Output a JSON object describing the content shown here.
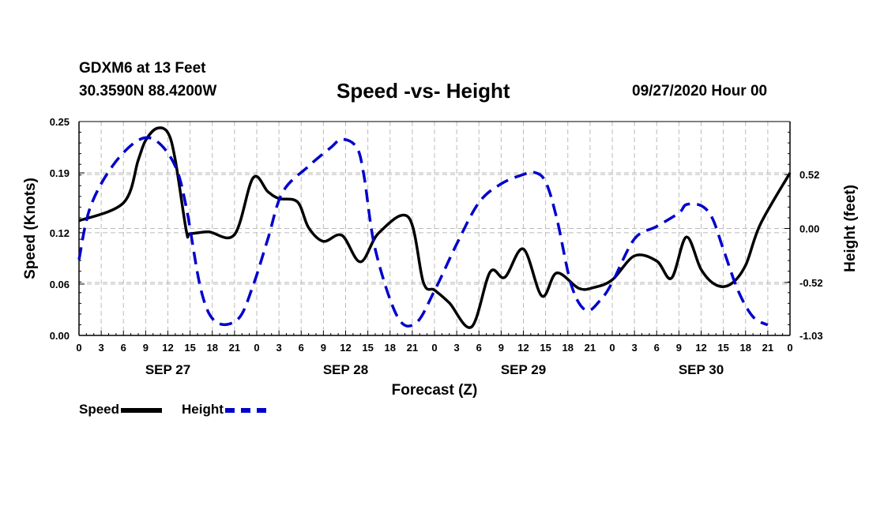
{
  "header": {
    "station": "GDXM6 at 13 Feet",
    "coords": "30.3590N 88.4200W",
    "title": "Speed -vs- Height",
    "datestamp": "09/27/2020 Hour 00"
  },
  "legend": {
    "speed": "Speed",
    "height": "Height"
  },
  "colors": {
    "speed": "#000000",
    "height": "#0000cc",
    "grid": "#bbbbbb"
  },
  "chart_data": {
    "type": "line",
    "title": "Speed -vs- Height",
    "xlabel": "Forecast (Z)",
    "ylabel": "Speed (Knots)",
    "y2label": "Height (feet)",
    "xlim": [
      0,
      96
    ],
    "ylim": [
      0,
      0.25
    ],
    "y2lim": [
      -1.03,
      1.03
    ],
    "grid": true,
    "x_ticks": [
      0,
      3,
      6,
      9,
      12,
      15,
      18,
      21,
      24,
      27,
      30,
      33,
      36,
      39,
      42,
      45,
      48,
      51,
      54,
      57,
      60,
      63,
      66,
      69,
      72,
      75,
      78,
      81,
      84,
      87,
      90,
      93,
      96
    ],
    "x_tick_labels": [
      "0",
      "3",
      "6",
      "9",
      "12",
      "15",
      "18",
      "21",
      "0",
      "3",
      "6",
      "9",
      "12",
      "15",
      "18",
      "21",
      "0",
      "3",
      "6",
      "9",
      "12",
      "15",
      "18",
      "21",
      "0",
      "3",
      "6",
      "9",
      "12",
      "15",
      "18",
      "21",
      "0"
    ],
    "day_labels": [
      {
        "label": "SEP 27",
        "x": 12
      },
      {
        "label": "SEP 28",
        "x": 36
      },
      {
        "label": "SEP 29",
        "x": 60
      },
      {
        "label": "SEP 30",
        "x": 84
      }
    ],
    "y_ticks": [
      0.0,
      0.06,
      0.12,
      0.19,
      0.25
    ],
    "y_tick_labels": [
      "0.00",
      "0.06",
      "0.12",
      "0.19",
      "0.25"
    ],
    "y2_ticks": [
      -1.03,
      -0.52,
      0.0,
      0.52
    ],
    "y2_tick_labels": [
      "-1.03",
      "-0.52",
      "0.00",
      "0.52"
    ],
    "series": [
      {
        "name": "Speed",
        "axis": "left",
        "style": "solid",
        "points": [
          [
            0,
            0.134
          ],
          [
            6,
            0.155
          ],
          [
            8,
            0.205
          ],
          [
            9,
            0.228
          ],
          [
            10.5,
            0.242
          ],
          [
            12,
            0.237
          ],
          [
            13,
            0.205
          ],
          [
            14.5,
            0.122
          ],
          [
            15,
            0.119
          ],
          [
            17.5,
            0.121
          ],
          [
            21,
            0.118
          ],
          [
            23.5,
            0.184
          ],
          [
            25.5,
            0.168
          ],
          [
            27,
            0.16
          ],
          [
            29.5,
            0.156
          ],
          [
            31,
            0.126
          ],
          [
            33,
            0.11
          ],
          [
            35.5,
            0.117
          ],
          [
            38,
            0.086
          ],
          [
            40.5,
            0.12
          ],
          [
            44.5,
            0.138
          ],
          [
            46.5,
            0.062
          ],
          [
            48,
            0.053
          ],
          [
            50,
            0.038
          ],
          [
            53,
            0.01
          ],
          [
            55.5,
            0.074
          ],
          [
            57.5,
            0.068
          ],
          [
            60,
            0.101
          ],
          [
            62.5,
            0.046
          ],
          [
            64.5,
            0.073
          ],
          [
            67.5,
            0.055
          ],
          [
            69.5,
            0.056
          ],
          [
            72,
            0.065
          ],
          [
            75,
            0.093
          ],
          [
            78,
            0.087
          ],
          [
            80,
            0.067
          ],
          [
            82,
            0.115
          ],
          [
            84,
            0.077
          ],
          [
            86,
            0.059
          ],
          [
            88,
            0.06
          ],
          [
            90,
            0.082
          ],
          [
            92,
            0.13
          ],
          [
            96,
            0.19
          ]
        ]
      },
      {
        "name": "Height",
        "axis": "right",
        "style": "dashed",
        "points": [
          [
            0,
            -0.3
          ],
          [
            1.5,
            0.2
          ],
          [
            4.5,
            0.6
          ],
          [
            8,
            0.85
          ],
          [
            10.5,
            0.84
          ],
          [
            13,
            0.6
          ],
          [
            14.5,
            0.2
          ],
          [
            16.5,
            -0.6
          ],
          [
            18.5,
            -0.9
          ],
          [
            21.5,
            -0.87
          ],
          [
            23.5,
            -0.55
          ],
          [
            25.5,
            -0.1
          ],
          [
            27.5,
            0.35
          ],
          [
            31,
            0.6
          ],
          [
            34,
            0.78
          ],
          [
            35.5,
            0.86
          ],
          [
            37.5,
            0.78
          ],
          [
            38.5,
            0.5
          ],
          [
            40,
            -0.2
          ],
          [
            43,
            -0.85
          ],
          [
            45.5,
            -0.91
          ],
          [
            48,
            -0.6
          ],
          [
            51,
            -0.15
          ],
          [
            54,
            0.25
          ],
          [
            57,
            0.43
          ],
          [
            60,
            0.52
          ],
          [
            61.5,
            0.54
          ],
          [
            63,
            0.45
          ],
          [
            64.5,
            0.1
          ],
          [
            66.5,
            -0.55
          ],
          [
            68.5,
            -0.79
          ],
          [
            70.5,
            -0.68
          ],
          [
            72,
            -0.52
          ],
          [
            75,
            -0.1
          ],
          [
            78,
            0.02
          ],
          [
            81,
            0.15
          ],
          [
            82,
            0.23
          ],
          [
            84,
            0.22
          ],
          [
            85.5,
            0.1
          ],
          [
            87,
            -0.2
          ],
          [
            89,
            -0.6
          ],
          [
            91,
            -0.85
          ],
          [
            93,
            -0.93
          ]
        ]
      }
    ]
  }
}
